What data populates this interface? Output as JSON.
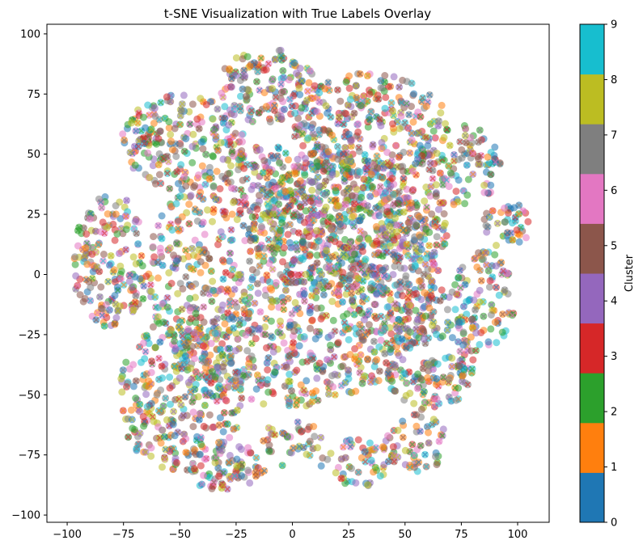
{
  "chart_data": {
    "type": "scatter",
    "title": "t-SNE Visualization with True Labels Overlay",
    "xlabel": "",
    "ylabel": "",
    "xlim": [
      -109,
      114
    ],
    "ylim": [
      -103,
      104
    ],
    "x_ticks": [
      -100,
      -75,
      -50,
      -25,
      0,
      25,
      50,
      75,
      100
    ],
    "y_ticks": [
      -100,
      -75,
      -50,
      -25,
      0,
      25,
      50,
      75,
      100
    ],
    "colorbar": {
      "label": "Cluster",
      "range": [
        0,
        9
      ],
      "ticks": [
        0,
        1,
        2,
        3,
        4,
        5,
        6,
        7,
        8,
        9
      ],
      "colors": [
        "#1f77b4",
        "#ff7f0e",
        "#2ca02c",
        "#d62728",
        "#9467bd",
        "#8c564b",
        "#e377c2",
        "#7f7f7f",
        "#bcbd22",
        "#17becf"
      ]
    },
    "markers": {
      "clusters": "filled circles colored by cluster",
      "true_labels": "x marks colored by true label overlaid on the points"
    },
    "grid": false,
    "legend": "none",
    "cloud_regions": [
      {
        "cx": -48,
        "cy": 55,
        "rx": 28,
        "ry": 20
      },
      {
        "cx": -12,
        "cy": 78,
        "rx": 22,
        "ry": 16
      },
      {
        "cx": 35,
        "cy": 62,
        "rx": 35,
        "ry": 22
      },
      {
        "cx": 75,
        "cy": 45,
        "rx": 18,
        "ry": 17
      },
      {
        "cx": -80,
        "cy": 5,
        "rx": 18,
        "ry": 28
      },
      {
        "cx": -50,
        "cy": -50,
        "rx": 28,
        "ry": 32
      },
      {
        "cx": -30,
        "cy": -80,
        "rx": 18,
        "ry": 10
      },
      {
        "cx": 0,
        "cy": -70,
        "rx": 14,
        "ry": 10
      },
      {
        "cx": 30,
        "cy": -78,
        "rx": 18,
        "ry": 10
      },
      {
        "cx": 55,
        "cy": -70,
        "rx": 14,
        "ry": 12
      },
      {
        "cx": 60,
        "cy": -30,
        "rx": 22,
        "ry": 28
      },
      {
        "cx": 85,
        "cy": -10,
        "rx": 14,
        "ry": 20
      },
      {
        "cx": 95,
        "cy": 20,
        "rx": 12,
        "ry": 10
      },
      {
        "cx": 0,
        "cy": 0,
        "rx": 65,
        "ry": 55
      },
      {
        "cx": 25,
        "cy": 20,
        "rx": 45,
        "ry": 30
      }
    ]
  }
}
